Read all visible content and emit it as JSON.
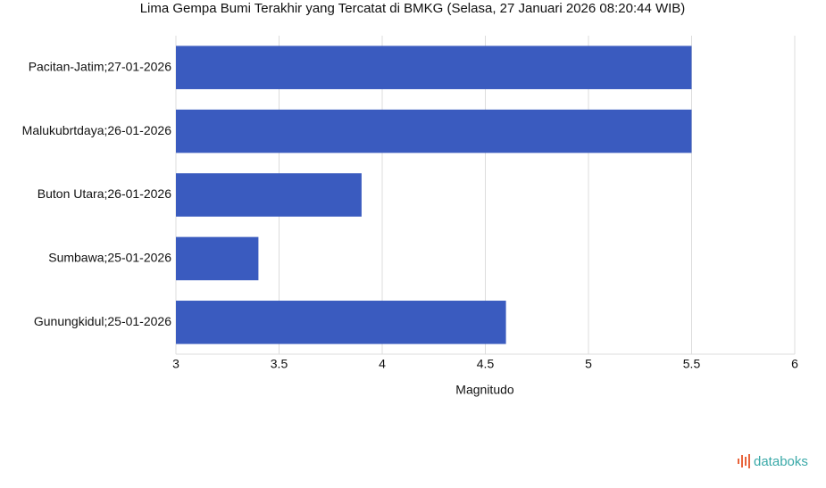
{
  "chart_data": {
    "type": "bar",
    "orientation": "horizontal",
    "title": "Lima Gempa Bumi Terakhir yang Tercatat di BMKG (Selasa, 27 Januari 2026 08:20:44 WIB)",
    "categories": [
      "Pacitan-Jatim;27-01-2026",
      "Malukubrtdaya;26-01-2026",
      "Buton Utara;26-01-2026",
      "Sumbawa;25-01-2026",
      "Gunungkidul;25-01-2026"
    ],
    "values": [
      5.5,
      5.5,
      3.9,
      3.4,
      4.6
    ],
    "color": "#3a5bbf",
    "x_label": "Magnitudo",
    "xlim": [
      3,
      6
    ],
    "xticks": [
      3,
      3.5,
      4,
      4.5,
      5,
      5.5,
      6
    ],
    "grid": true
  },
  "logo": "databoks"
}
